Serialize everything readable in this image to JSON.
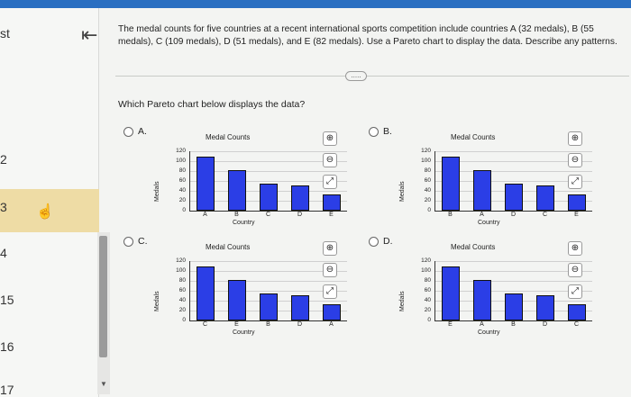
{
  "left_panel": {
    "items": [
      "st",
      "2",
      "3",
      "4",
      "15",
      "16",
      "17"
    ]
  },
  "question": {
    "text": "The medal counts for five countries at a recent international sports competition include countries A (32 medals), B (55 medals), C (109 medals), D (51 medals), and E (82 medals). Use a Pareto chart to display the data. Describe any patterns.",
    "prompt": "Which Pareto chart below displays the data?",
    "more_label": "....."
  },
  "options": [
    {
      "letter": "A.",
      "title": "Medal Counts"
    },
    {
      "letter": "B.",
      "title": "Medal Counts"
    },
    {
      "letter": "C.",
      "title": "Medal Counts"
    },
    {
      "letter": "D.",
      "title": "Medal Counts"
    }
  ],
  "axis": {
    "ylabel": "Medals",
    "xlabel": "Country",
    "ticks": [
      "120",
      "100",
      "80",
      "60",
      "40",
      "20",
      "0"
    ]
  },
  "chart_data": [
    {
      "type": "bar",
      "title": "Medal Counts",
      "xlabel": "Country",
      "ylabel": "Medals",
      "ylim": [
        0,
        120
      ],
      "categories": [
        "A",
        "B",
        "C",
        "D",
        "E"
      ],
      "values": [
        109,
        82,
        55,
        51,
        32
      ]
    },
    {
      "type": "bar",
      "title": "Medal Counts",
      "xlabel": "Country",
      "ylabel": "Medals",
      "ylim": [
        0,
        120
      ],
      "categories": [
        "B",
        "A",
        "D",
        "C",
        "E"
      ],
      "values": [
        109,
        82,
        55,
        51,
        32
      ]
    },
    {
      "type": "bar",
      "title": "Medal Counts",
      "xlabel": "Country",
      "ylabel": "Medals",
      "ylim": [
        0,
        120
      ],
      "categories": [
        "C",
        "E",
        "B",
        "D",
        "A"
      ],
      "values": [
        109,
        82,
        55,
        51,
        32
      ]
    },
    {
      "type": "bar",
      "title": "Medal Counts",
      "xlabel": "Country",
      "ylabel": "Medals",
      "ylim": [
        0,
        120
      ],
      "categories": [
        "E",
        "A",
        "B",
        "D",
        "C"
      ],
      "values": [
        109,
        82,
        55,
        51,
        32
      ]
    }
  ],
  "icons": {
    "zoom_in": "zoom-in-icon",
    "zoom_out": "zoom-out-icon",
    "expand": "expand-icon"
  }
}
